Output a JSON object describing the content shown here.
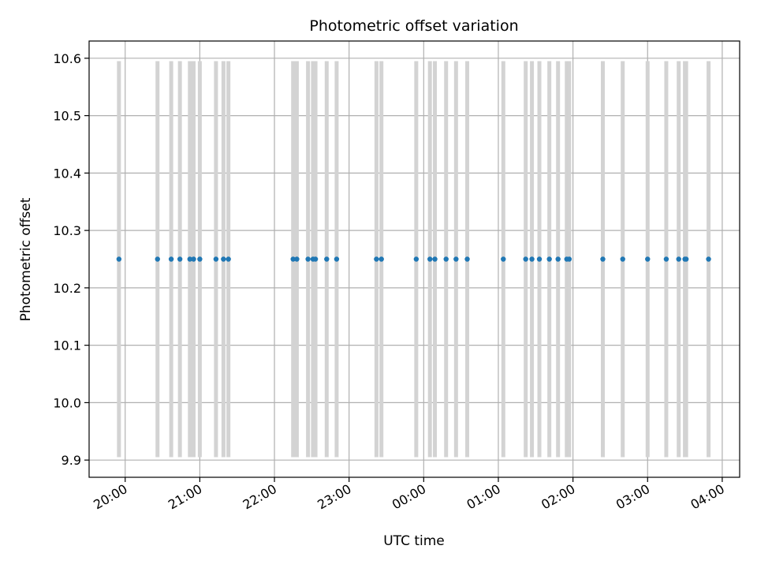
{
  "chart_data": {
    "type": "scatter",
    "title": "Photometric offset variation",
    "xlabel": "UTC time",
    "ylabel": "Photometric offset",
    "x_tick_labels": [
      "20:00",
      "21:00",
      "22:00",
      "23:00",
      "00:00",
      "01:00",
      "02:00",
      "03:00",
      "04:00"
    ],
    "y_ticks": [
      9.9,
      10.0,
      10.1,
      10.2,
      10.3,
      10.4,
      10.5,
      10.6
    ],
    "y_tick_labels": [
      "9.9",
      "10.0",
      "10.1",
      "10.2",
      "10.3",
      "10.4",
      "10.5",
      "10.6"
    ],
    "xlim": [
      "19:31",
      "04:14"
    ],
    "ylim": [
      9.87,
      10.63
    ],
    "grid": true,
    "colors": {
      "points": "#1f77b4",
      "bars": "#d3d3d3",
      "grid": "#b0b0b0"
    },
    "error_bar_range": [
      9.905,
      10.595
    ],
    "x": [
      "19:55",
      "20:26",
      "20:37",
      "20:44",
      "20:52",
      "20:55",
      "21:00",
      "21:13",
      "21:19",
      "21:23",
      "22:15",
      "22:18",
      "22:27",
      "22:31",
      "22:33",
      "22:42",
      "22:50",
      "23:22",
      "23:26",
      "23:54",
      "00:05",
      "00:09",
      "00:18",
      "00:26",
      "00:35",
      "01:04",
      "01:22",
      "01:27",
      "01:33",
      "01:41",
      "01:48",
      "01:55",
      "01:57",
      "02:24",
      "02:40",
      "03:00",
      "03:15",
      "03:25",
      "03:30",
      "03:31",
      "03:49"
    ],
    "y": [
      10.25,
      10.25,
      10.25,
      10.25,
      10.25,
      10.25,
      10.25,
      10.25,
      10.25,
      10.25,
      10.25,
      10.25,
      10.25,
      10.25,
      10.25,
      10.25,
      10.25,
      10.25,
      10.25,
      10.25,
      10.25,
      10.25,
      10.25,
      10.25,
      10.25,
      10.25,
      10.25,
      10.25,
      10.25,
      10.25,
      10.25,
      10.25,
      10.25,
      10.25,
      10.25,
      10.25,
      10.25,
      10.25,
      10.25,
      10.25,
      10.25
    ]
  }
}
